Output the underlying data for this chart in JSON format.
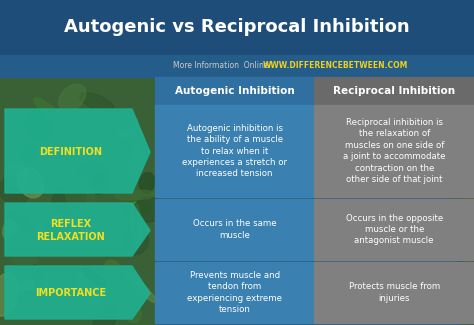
{
  "title": "Autogenic vs Reciprocal Inhibition",
  "subtitle_left": "More Information  Online",
  "subtitle_right": "WWW.DIFFERENCEBETWEEN.COM",
  "col1_header": "Autogenic Inhibition",
  "col2_header": "Reciprocal Inhibition",
  "rows": [
    {
      "label": "DEFINITION",
      "col1": "Autogenic inhibition is\nthe ability of a muscle\nto relax when it\nexperiences a stretch or\nincreased tension",
      "col2": "Reciprocal inhibition is\nthe relaxation of\nmuscles on one side of\na joint to accommodate\ncontraction on the\nother side of that joint"
    },
    {
      "label": "REFLEX\nRELAXATION",
      "col1": "Occurs in the same\nmuscle",
      "col2": "Occurs in the opposite\nmuscle or the\nantagonist muscle"
    },
    {
      "label": "IMPORTANCE",
      "col1": "Prevents muscle and\ntendon from\nexperiencing extreme\ntension",
      "col2": "Protects muscle from\ninjuries"
    }
  ],
  "title_bg": "#1e4d7a",
  "title_color": "#ffffff",
  "subtitle_bar_bg": "#245c8a",
  "subtitle_left_color": "#cccccc",
  "subtitle_right_color": "#f0d020",
  "col1_header_bg": "#3070a0",
  "col2_header_bg": "#6a6a6a",
  "header_text_color": "#ffffff",
  "col1_cell_bg": "#3a80b0",
  "col2_cell_bg": "#808080",
  "label_arrow_bg": "#20b090",
  "label_text_color": "#f0e020",
  "cell_text_color": "#ffffff",
  "left_nature_bg": "#2a5a30",
  "right_nature_bg": "#3a5a28",
  "overall_bg": "#2a5a7a"
}
